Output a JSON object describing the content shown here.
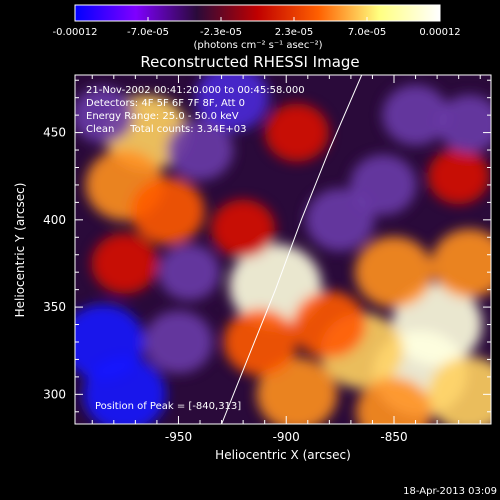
{
  "colorbar": {
    "tick_labels": [
      "-0.00012",
      "-7.0e-05",
      "-2.3e-05",
      "2.3e-05",
      "7.0e-05",
      "0.00012"
    ],
    "unit_label": "(photons cm⁻² s⁻¹ asec⁻²)",
    "range": [
      -0.00012,
      0.00012
    ],
    "colormap": [
      "#0000ff",
      "#7f00ff",
      "#2a0a3a",
      "#c00000",
      "#ff6000",
      "#ffff80",
      "#ffffff"
    ]
  },
  "chart_data": {
    "type": "heatmap",
    "title": "Reconstructed RHESSI Image",
    "xlabel": "Heliocentric X (arcsec)",
    "ylabel": "Heliocentric Y (arcsec)",
    "xlim": [
      -998,
      -805
    ],
    "ylim": [
      283,
      483
    ],
    "x_ticks": [
      -950,
      -900,
      -850
    ],
    "y_ticks": [
      300,
      350,
      400,
      450
    ],
    "annotations": [
      "21-Nov-2002 00:41:20.000 to 00:45:58.000",
      "Detectors: 4F 5F 6F 7F 8F, Att 0",
      "Energy Range: 25.0 - 50.0 keV",
      "Clean     Total counts: 3.34E+03"
    ],
    "peak_label": "Position of Peak = [-840,313]",
    "peak": [
      -840,
      313
    ],
    "limb_curve": [
      [
        -930,
        283
      ],
      [
        -918,
        320
      ],
      [
        -905,
        360
      ],
      [
        -893,
        400
      ],
      [
        -880,
        440
      ],
      [
        -865,
        483
      ]
    ],
    "blobs": [
      {
        "x": -838,
        "y": 312,
        "v": 1.0
      },
      {
        "x": -905,
        "y": 362,
        "v": 0.95
      },
      {
        "x": -830,
        "y": 340,
        "v": 0.9
      },
      {
        "x": -865,
        "y": 325,
        "v": 0.75
      },
      {
        "x": -895,
        "y": 300,
        "v": 0.7
      },
      {
        "x": -815,
        "y": 300,
        "v": 0.75
      },
      {
        "x": -850,
        "y": 370,
        "v": 0.65
      },
      {
        "x": -815,
        "y": 375,
        "v": 0.6
      },
      {
        "x": -850,
        "y": 290,
        "v": 0.6
      },
      {
        "x": -880,
        "y": 340,
        "v": 0.55
      },
      {
        "x": -965,
        "y": 450,
        "v": 0.75
      },
      {
        "x": -975,
        "y": 420,
        "v": 0.65
      },
      {
        "x": -955,
        "y": 405,
        "v": 0.55
      },
      {
        "x": -912,
        "y": 330,
        "v": 0.55
      },
      {
        "x": -975,
        "y": 375,
        "v": 0.4
      },
      {
        "x": -920,
        "y": 395,
        "v": 0.35
      },
      {
        "x": -895,
        "y": 450,
        "v": 0.35
      },
      {
        "x": -820,
        "y": 425,
        "v": 0.3
      },
      {
        "x": -985,
        "y": 330,
        "v": -0.75
      },
      {
        "x": -975,
        "y": 300,
        "v": -0.75
      },
      {
        "x": -950,
        "y": 330,
        "v": -0.45
      },
      {
        "x": -925,
        "y": 470,
        "v": -0.55
      },
      {
        "x": -940,
        "y": 440,
        "v": -0.4
      },
      {
        "x": -875,
        "y": 400,
        "v": -0.45
      },
      {
        "x": -855,
        "y": 420,
        "v": -0.4
      },
      {
        "x": -840,
        "y": 460,
        "v": -0.4
      },
      {
        "x": -815,
        "y": 455,
        "v": -0.35
      },
      {
        "x": -985,
        "y": 460,
        "v": -0.3
      },
      {
        "x": -945,
        "y": 370,
        "v": -0.3
      }
    ]
  },
  "footer": {
    "timestamp": "18-Apr-2013 03:09"
  }
}
